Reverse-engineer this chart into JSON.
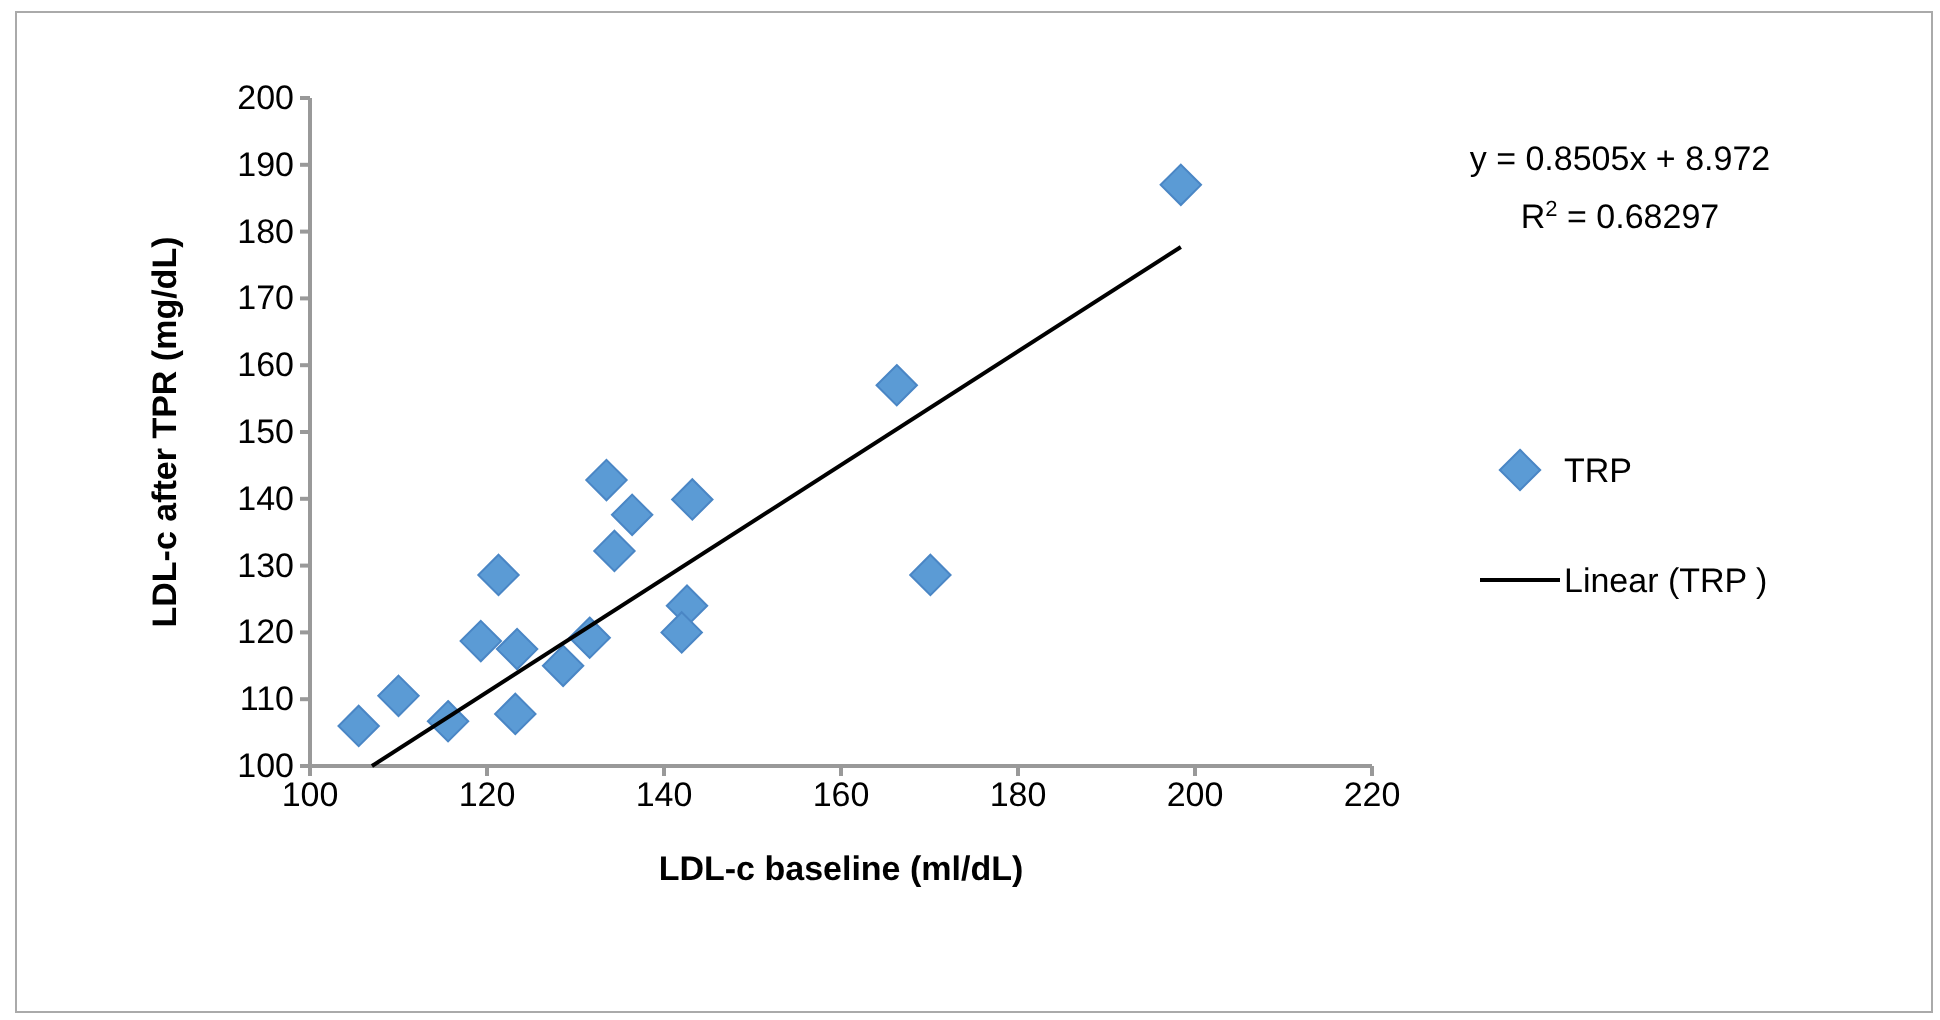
{
  "chart_data": {
    "type": "scatter",
    "xlabel": "LDL-c baseline (ml/dL)",
    "ylabel": "LDL-c after TPR (mg/dL)",
    "xlim": [
      100,
      220
    ],
    "xticks": [
      100,
      120,
      140,
      160,
      180,
      200,
      220
    ],
    "ylim": [
      100,
      200
    ],
    "yticks": [
      100,
      110,
      120,
      130,
      140,
      150,
      160,
      170,
      180,
      190,
      200
    ],
    "grid": false,
    "legend": "right",
    "annotations": [
      "y = 0.8505x + 8.972",
      "R$^{2}$ = 0.68297"
    ],
    "series": [
      {
        "name": "TRP",
        "marker": "diamond",
        "color": "#5b9bd5",
        "x": [
          105.5,
          110,
          115.6,
          121.3,
          119.3,
          123.4,
          123.2,
          128.6,
          131.6,
          133.5,
          136.4,
          134.4,
          143.2,
          142.6,
          142,
          170.1,
          166.3,
          198.4
        ],
        "values": [
          106,
          110.5,
          106.7,
          128.6,
          118.7,
          117.5,
          107.8,
          115,
          119.2,
          142.8,
          137.6,
          132.2,
          139.9,
          124,
          120,
          128.6,
          157,
          187
        ]
      },
      {
        "name": "Linear (TRP )",
        "type": "line",
        "color": "#000000",
        "line_style": "solid",
        "marker": "none",
        "x": [
          107,
          198.4
        ],
        "values": [
          100,
          177.7
        ]
      }
    ]
  }
}
